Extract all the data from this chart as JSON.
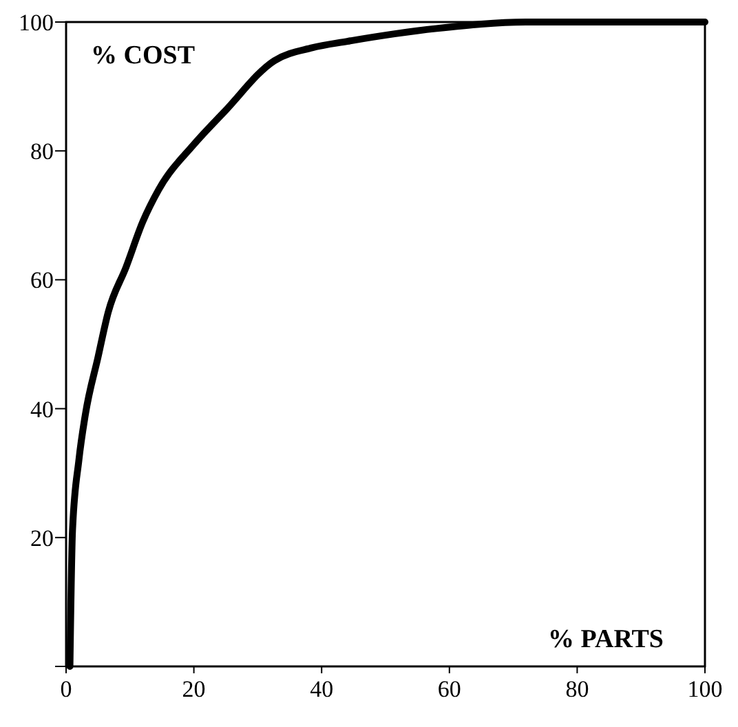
{
  "chart_data": {
    "type": "line",
    "xlabel": "% PARTS",
    "ylabel": "% COST",
    "xlim": [
      0,
      100
    ],
    "ylim": [
      0,
      100
    ],
    "xticks": [
      0,
      20,
      40,
      60,
      80,
      100
    ],
    "yticks": [
      {
        "value": 0,
        "label": null
      },
      20,
      40,
      60,
      80,
      100
    ],
    "x": [
      0.6,
      1,
      2,
      3,
      5,
      6.6,
      9.4,
      12,
      14.5,
      20,
      24.7,
      32.6,
      38.5,
      44,
      58,
      72,
      100
    ],
    "series": [
      {
        "color": "#000000",
        "values": [
          0,
          21,
          32,
          39,
          48,
          55,
          62,
          69,
          74,
          81,
          86,
          94,
          96,
          97,
          99,
          100,
          100
        ]
      }
    ],
    "grid": false,
    "marker": "none",
    "line_style": "solid"
  }
}
